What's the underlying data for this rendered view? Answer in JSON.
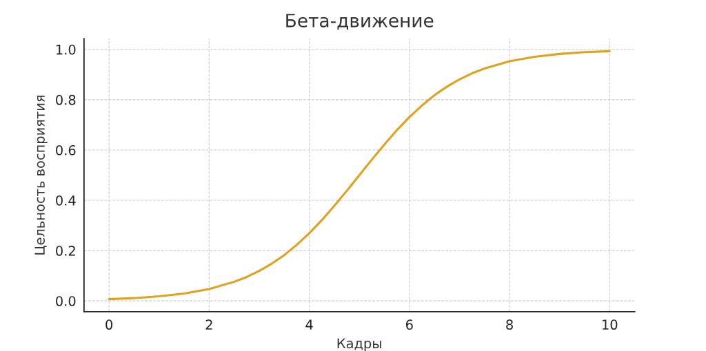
{
  "chart_data": {
    "type": "line",
    "title": "Бета-движение",
    "xlabel": "Кадры",
    "ylabel": "Цельность восприятия",
    "x": [
      0,
      0.5,
      1,
      1.5,
      2,
      2.5,
      2.75,
      3,
      3.25,
      3.5,
      3.75,
      4,
      4.25,
      4.5,
      4.75,
      5,
      5.25,
      5.5,
      5.75,
      6,
      6.25,
      6.5,
      6.75,
      7,
      7.25,
      7.5,
      8,
      8.5,
      9,
      9.5,
      10
    ],
    "series": [
      {
        "color": "#e0a11c",
        "values": [
          0.007,
          0.011,
          0.018,
          0.029,
          0.047,
          0.076,
          0.095,
          0.119,
          0.148,
          0.182,
          0.223,
          0.269,
          0.321,
          0.378,
          0.438,
          0.5,
          0.562,
          0.622,
          0.679,
          0.731,
          0.777,
          0.818,
          0.852,
          0.881,
          0.905,
          0.924,
          0.953,
          0.971,
          0.982,
          0.989,
          0.993
        ]
      }
    ],
    "xlim": [
      -0.5,
      10.5
    ],
    "ylim": [
      -0.043,
      1.043
    ],
    "xticks": [
      0,
      2,
      4,
      6,
      8,
      10
    ],
    "yticks": [
      {
        "value": 0,
        "label": "0.0"
      },
      {
        "value": 0.2,
        "label": "0.2"
      },
      {
        "value": 0.4,
        "label": "0.4"
      },
      {
        "value": 0.6,
        "label": "0.6"
      },
      {
        "value": 0.8,
        "label": "0.8"
      },
      {
        "value": 1,
        "label": "1.0"
      }
    ],
    "grid": true,
    "line_style": "solid",
    "marker": "none"
  }
}
